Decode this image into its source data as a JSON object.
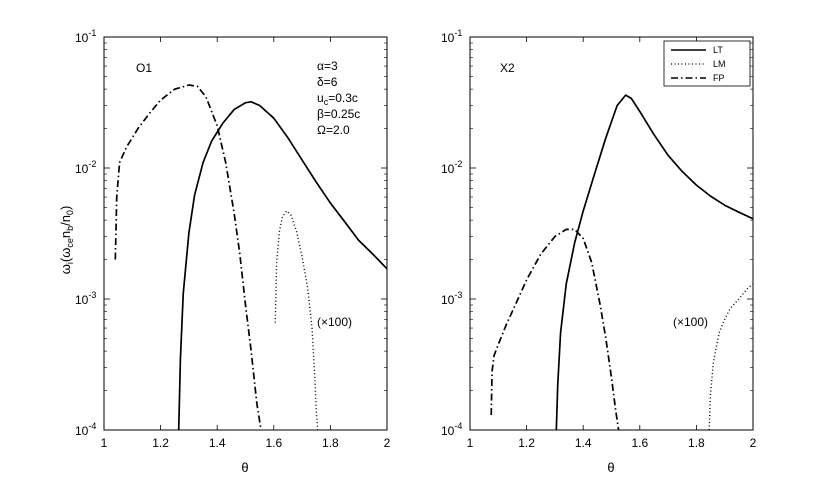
{
  "chart_data": [
    {
      "type": "line",
      "panel_label": "O1",
      "xlabel": "θ",
      "ylabel": "ωi(ωce nb/n0)",
      "ylabel_parts": {
        "base": "ω",
        "sub_i": "i",
        "open": "(ω",
        "sub_ce": "ce",
        "n": "n",
        "sub_b": "b",
        "slash": "/n",
        "sub_0": "0",
        "close": ")"
      },
      "xlim": [
        1,
        2
      ],
      "ylim": [
        0.0001,
        0.1
      ],
      "yscale": "log",
      "grid": false,
      "x_ticks": [
        "1",
        "1.2",
        "1.4",
        "1.6",
        "1.8",
        "2"
      ],
      "y_ticks": [
        {
          "base": "10",
          "exp": "-4"
        },
        {
          "base": "10",
          "exp": "-3"
        },
        {
          "base": "10",
          "exp": "-2"
        },
        {
          "base": "10",
          "exp": "-1"
        }
      ],
      "parameters": [
        {
          "text": "α=3"
        },
        {
          "text": "δ=6"
        },
        {
          "text": "u",
          "sub": "c",
          "tail": "=0.3c"
        },
        {
          "text": "β=0.25c"
        },
        {
          "text": "Ω=2.0"
        }
      ],
      "scale_note": "(×100)",
      "series": [
        {
          "name": "LT",
          "style": "solid",
          "x": [
            1.264,
            1.27,
            1.28,
            1.3,
            1.32,
            1.35,
            1.38,
            1.42,
            1.46,
            1.5,
            1.52,
            1.55,
            1.6,
            1.65,
            1.7,
            1.75,
            1.8,
            1.85,
            1.9,
            1.95,
            2.0
          ],
          "y": [
            0.0001,
            0.00035,
            0.0011,
            0.0032,
            0.0062,
            0.011,
            0.016,
            0.022,
            0.028,
            0.0315,
            0.032,
            0.03,
            0.024,
            0.017,
            0.0115,
            0.0078,
            0.0054,
            0.0039,
            0.0028,
            0.0022,
            0.0017
          ]
        },
        {
          "name": "LM",
          "style": "dotted",
          "x": [
            1.605,
            1.61,
            1.62,
            1.63,
            1.645,
            1.66,
            1.68,
            1.7,
            1.72,
            1.735,
            1.745,
            1.75,
            1.755
          ],
          "y": [
            0.00066,
            0.0019,
            0.0033,
            0.0042,
            0.0047,
            0.0044,
            0.0033,
            0.0021,
            0.0012,
            0.0006,
            0.00025,
            0.00014,
            0.0001
          ]
        },
        {
          "name": "FP",
          "style": "dashdot",
          "x": [
            1.04,
            1.045,
            1.055,
            1.08,
            1.12,
            1.16,
            1.2,
            1.25,
            1.3,
            1.33,
            1.36,
            1.4,
            1.43,
            1.46,
            1.48,
            1.5,
            1.52,
            1.54,
            1.555
          ],
          "y": [
            0.002,
            0.006,
            0.011,
            0.0145,
            0.02,
            0.026,
            0.033,
            0.04,
            0.043,
            0.042,
            0.035,
            0.021,
            0.011,
            0.0045,
            0.0022,
            0.0009,
            0.0004,
            0.00016,
            0.0001
          ]
        }
      ]
    },
    {
      "type": "line",
      "panel_label": "X2",
      "xlabel": "θ",
      "xlim": [
        1,
        2
      ],
      "ylim": [
        0.0001,
        0.1
      ],
      "yscale": "log",
      "grid": false,
      "x_ticks": [
        "1",
        "1.2",
        "1.4",
        "1.6",
        "1.8",
        "2"
      ],
      "y_ticks": [
        {
          "base": "10",
          "exp": "-4"
        },
        {
          "base": "10",
          "exp": "-3"
        },
        {
          "base": "10",
          "exp": "-2"
        },
        {
          "base": "10",
          "exp": "-1"
        }
      ],
      "scale_note": "(×100)",
      "legend": {
        "placement": "top-right",
        "entries": [
          "LT",
          "LM",
          "FP"
        ]
      },
      "series": [
        {
          "name": "LT",
          "style": "solid",
          "x": [
            1.305,
            1.31,
            1.32,
            1.34,
            1.37,
            1.4,
            1.44,
            1.48,
            1.52,
            1.55,
            1.57,
            1.6,
            1.65,
            1.7,
            1.75,
            1.8,
            1.85,
            1.9,
            1.95,
            2.0
          ],
          "y": [
            0.0001,
            0.00022,
            0.00055,
            0.0013,
            0.0027,
            0.0047,
            0.009,
            0.017,
            0.03,
            0.036,
            0.034,
            0.027,
            0.018,
            0.0125,
            0.0094,
            0.0074,
            0.0061,
            0.0052,
            0.0046,
            0.0041
          ]
        },
        {
          "name": "LM",
          "style": "dotted",
          "x": [
            1.845,
            1.85,
            1.86,
            1.88,
            1.9,
            1.92,
            1.95,
            1.98,
            2.0
          ],
          "y": [
            0.0001,
            0.00019,
            0.00033,
            0.00055,
            0.0007,
            0.00085,
            0.001,
            0.0012,
            0.0013
          ]
        },
        {
          "name": "FP",
          "style": "dashdot",
          "x": [
            1.075,
            1.078,
            1.085,
            1.1,
            1.13,
            1.16,
            1.2,
            1.25,
            1.3,
            1.34,
            1.37,
            1.4,
            1.43,
            1.46,
            1.48,
            1.5,
            1.515,
            1.525
          ],
          "y": [
            0.00013,
            0.00028,
            0.00037,
            0.00045,
            0.00065,
            0.0009,
            0.0014,
            0.0022,
            0.003,
            0.0034,
            0.0034,
            0.0029,
            0.0019,
            0.0009,
            0.0005,
            0.00025,
            0.00014,
            0.0001
          ]
        }
      ]
    }
  ]
}
